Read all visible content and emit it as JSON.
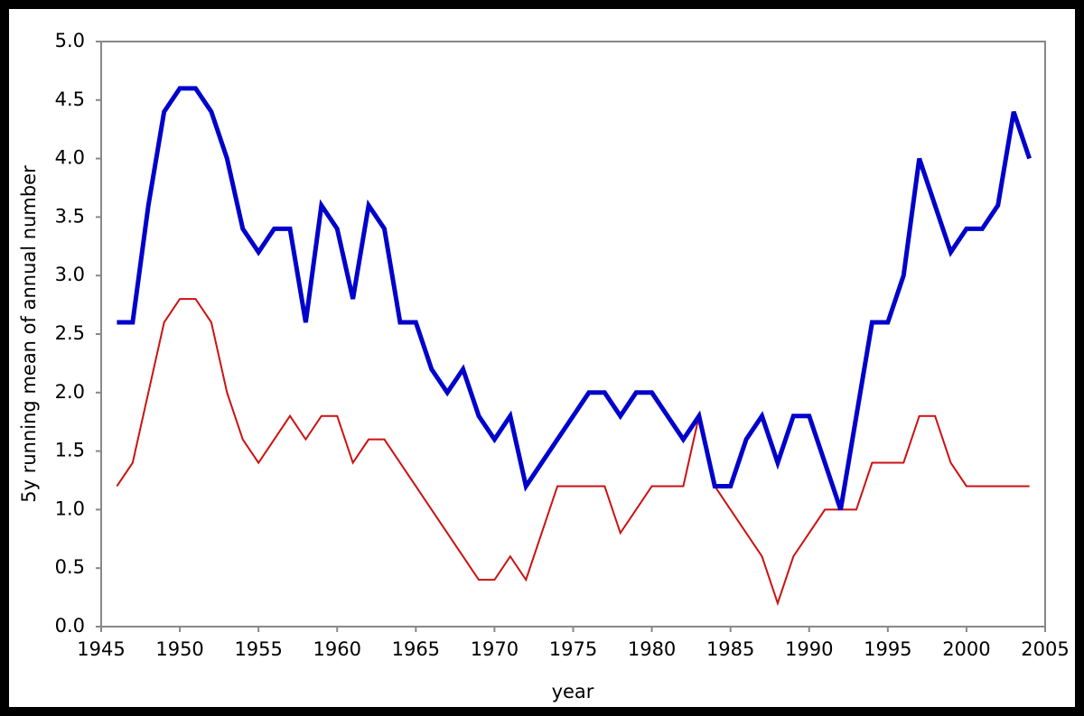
{
  "chart_data": {
    "type": "line",
    "xlabel": "year",
    "ylabel": "5y running mean of annual number",
    "x": [
      1946,
      1947,
      1948,
      1949,
      1950,
      1951,
      1952,
      1953,
      1954,
      1955,
      1956,
      1957,
      1958,
      1959,
      1960,
      1961,
      1962,
      1963,
      1964,
      1965,
      1966,
      1967,
      1968,
      1969,
      1970,
      1971,
      1972,
      1973,
      1974,
      1975,
      1976,
      1977,
      1978,
      1979,
      1980,
      1981,
      1982,
      1983,
      1984,
      1985,
      1986,
      1987,
      1988,
      1989,
      1990,
      1991,
      1992,
      1993,
      1994,
      1995,
      1996,
      1997,
      1998,
      1999,
      2000,
      2001,
      2002,
      2003,
      2004
    ],
    "series": [
      {
        "color": "#0000cc",
        "width": 5,
        "values": [
          2.6,
          2.6,
          3.6,
          4.4,
          4.6,
          4.6,
          4.4,
          4.0,
          3.4,
          3.2,
          3.4,
          3.4,
          2.6,
          3.6,
          3.4,
          2.8,
          3.6,
          3.4,
          2.6,
          2.6,
          2.2,
          2.0,
          2.2,
          1.8,
          1.6,
          1.8,
          1.2,
          1.4,
          1.6,
          1.8,
          2.0,
          2.0,
          1.8,
          2.0,
          2.0,
          1.8,
          1.6,
          1.8,
          1.2,
          1.2,
          1.6,
          1.8,
          1.4,
          1.8,
          1.8,
          1.4,
          1.0,
          1.8,
          2.6,
          2.6,
          3.0,
          4.0,
          3.6,
          3.2,
          3.4,
          3.4,
          3.6,
          4.4,
          4.0
        ]
      },
      {
        "color": "#cc1111",
        "width": 2,
        "values": [
          1.2,
          1.4,
          2.0,
          2.6,
          2.8,
          2.8,
          2.6,
          2.0,
          1.6,
          1.4,
          1.6,
          1.8,
          1.6,
          1.8,
          1.8,
          1.4,
          1.6,
          1.6,
          1.4,
          1.2,
          1.0,
          0.8,
          0.6,
          0.4,
          0.4,
          0.6,
          0.4,
          0.8,
          1.2,
          1.2,
          1.2,
          1.2,
          0.8,
          1.0,
          1.2,
          1.2,
          1.2,
          1.8,
          1.2,
          1.0,
          0.8,
          0.6,
          0.2,
          0.6,
          0.8,
          1.0,
          1.0,
          1.0,
          1.4,
          1.4,
          1.4,
          1.8,
          1.8,
          1.4,
          1.2,
          1.2,
          1.2,
          1.2,
          1.2
        ]
      }
    ],
    "xlim": [
      1945,
      2005
    ],
    "xticks": [
      1945,
      1950,
      1955,
      1960,
      1965,
      1970,
      1975,
      1980,
      1985,
      1990,
      1995,
      2000,
      2005
    ],
    "ylim": [
      0,
      5
    ],
    "yticks": [
      {
        "value": 0,
        "label": "0.0"
      },
      0.5,
      {
        "value": 1,
        "label": "1.0"
      },
      1.5,
      {
        "value": 2,
        "label": "2.0"
      },
      2.5,
      {
        "value": 3,
        "label": "3.0"
      },
      3.5,
      {
        "value": 4,
        "label": "4.0"
      },
      4.5,
      {
        "value": 5,
        "label": "5.0"
      }
    ]
  }
}
